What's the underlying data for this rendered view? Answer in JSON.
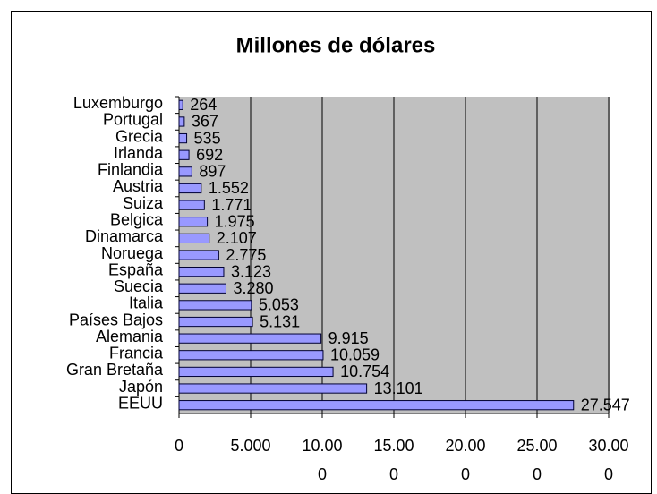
{
  "chart_data": {
    "type": "bar",
    "orientation": "horizontal",
    "title": "Millones de dólares",
    "categories": [
      "Luxemburgo",
      "Portugal",
      "Grecia",
      "Irlanda",
      "Finlandia",
      "Austria",
      "Suiza",
      "Belgica",
      "Dinamarca",
      "Noruega",
      "España",
      "Suecia",
      "Italia",
      "Países Bajos",
      "Alemania",
      "Francia",
      "Gran Bretaña",
      "Japón",
      "EEUU"
    ],
    "values": [
      264,
      367,
      535,
      692,
      897,
      1552,
      1771,
      1975,
      2107,
      2775,
      3123,
      3280,
      5053,
      5131,
      9915,
      10059,
      10754,
      13101,
      27547
    ],
    "value_labels": [
      "264",
      "367",
      "535",
      "692",
      "897",
      "1.552",
      "1.771",
      "1.975",
      "2.107",
      "2.775",
      "3.123",
      "3.280",
      "5.053",
      "5.131",
      "9.915",
      "10.059",
      "10.754",
      "13.101",
      "27.547"
    ],
    "color": "#9999ff",
    "plot_background": "#c0c0c0",
    "xlim": [
      0,
      30000
    ],
    "xticks": [
      0,
      {
        "value": 5000,
        "label": "5.000"
      },
      {
        "value": 10000,
        "label": "10.000"
      },
      {
        "value": 15000,
        "label": "15.000"
      },
      {
        "value": 20000,
        "label": "20.000"
      },
      {
        "value": 25000,
        "label": "25.000"
      },
      {
        "value": 30000,
        "label": "30.000"
      }
    ],
    "grid": true
  }
}
